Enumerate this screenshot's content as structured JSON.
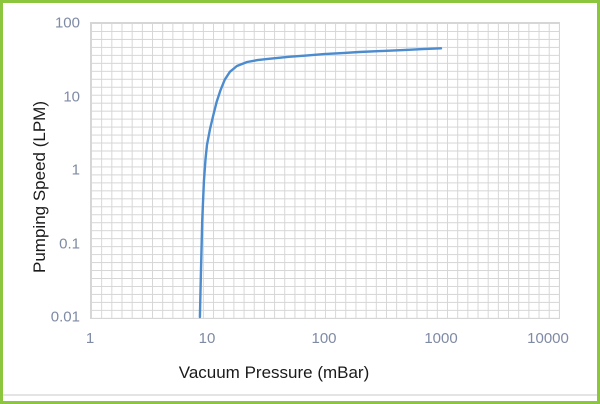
{
  "frame": {
    "border_color": "#8cc63f"
  },
  "chart_data": {
    "type": "line",
    "title": "",
    "xlabel": "Vacuum Pressure (mBar)",
    "ylabel": "Pumping Speed (LPM)",
    "x_scale": "log",
    "y_scale": "log",
    "xlim": [
      1,
      10000
    ],
    "ylim": [
      0.01,
      100
    ],
    "x_ticks": [
      "1",
      "10",
      "100",
      "1000",
      "10000"
    ],
    "y_ticks": [
      "100",
      "10",
      "1",
      "0.1",
      "0.01"
    ],
    "grid": "uniform square graph-paper grid, on",
    "legend": "none",
    "line_color": "#4b8bce",
    "grid_color": "#d6d6d6",
    "tick_color": "#7f8aa4",
    "points": [
      [
        8.7,
        0.01
      ],
      [
        8.9,
        0.05
      ],
      [
        9.1,
        0.2
      ],
      [
        9.4,
        0.7
      ],
      [
        9.7,
        1.4
      ],
      [
        10,
        2.2
      ],
      [
        10.6,
        3.6
      ],
      [
        11.3,
        5.5
      ],
      [
        12.1,
        8.5
      ],
      [
        13,
        12
      ],
      [
        14.2,
        17
      ],
      [
        15.7,
        21.7
      ],
      [
        18,
        26
      ],
      [
        22,
        29.5
      ],
      [
        27,
        31.3
      ],
      [
        33,
        32.5
      ],
      [
        50,
        34.7
      ],
      [
        70,
        36
      ],
      [
        100,
        37.8
      ],
      [
        150,
        39.2
      ],
      [
        200,
        40.3
      ],
      [
        300,
        41.5
      ],
      [
        500,
        43
      ],
      [
        700,
        44.2
      ],
      [
        1000,
        45.3
      ]
    ]
  }
}
